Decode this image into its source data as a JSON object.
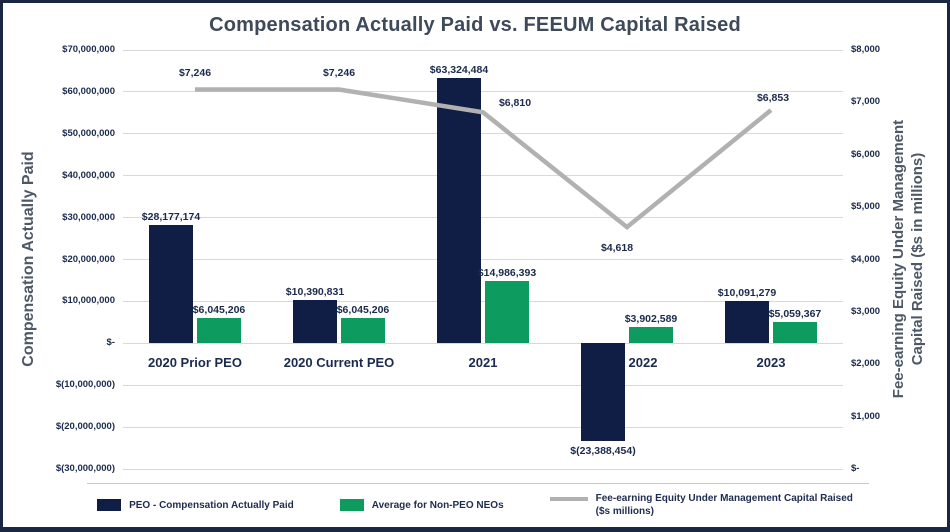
{
  "page": {
    "title": "Compensation Actually Paid vs. FEEUM Capital Raised"
  },
  "axes": {
    "left_title": "Compensation Actually Paid",
    "right_title_line1": "Fee-earning Equity Under Management",
    "right_title_line2": "Capital Raised ($s in millions)"
  },
  "chart_data": {
    "type": "bar+line",
    "title": "Compensation Actually Paid vs. FEEUM Capital Raised",
    "categories": [
      "2020 Prior PEO",
      "2020 Current PEO",
      "2021",
      "2022",
      "2023"
    ],
    "grid": true,
    "legend_position": "bottom",
    "left_axis": {
      "label": "Compensation Actually Paid",
      "min": -30000000,
      "max": 70000000,
      "tick_step": 10000000,
      "tick_labels": [
        "$70,000,000",
        "$60,000,000",
        "$50,000,000",
        "$40,000,000",
        "$30,000,000",
        "$20,000,000",
        "$10,000,000",
        "$-",
        "$(10,000,000)",
        "$(20,000,000)",
        "$(30,000,000)"
      ]
    },
    "right_axis": {
      "label": "Fee-earning Equity Under Management Capital Raised ($s in millions)",
      "min": 0,
      "max": 8000,
      "tick_step": 1000,
      "tick_labels": [
        "$8,000",
        "$7,000",
        "$6,000",
        "$5,000",
        "$4,000",
        "$3,000",
        "$2,000",
        "$1,000",
        "$-"
      ]
    },
    "series": [
      {
        "name": "PEO - Compensation Actually Paid",
        "type": "bar",
        "axis": "left",
        "color": "#101e45",
        "values": [
          28177174,
          10390831,
          63324484,
          -23388454,
          10091279
        ],
        "labels": [
          "$28,177,174",
          "$10,390,831",
          "$63,324,484",
          "$(23,388,454)",
          "$10,091,279"
        ]
      },
      {
        "name": "Average for Non-PEO NEOs",
        "type": "bar",
        "axis": "left",
        "color": "#0e9b5f",
        "values": [
          6045206,
          6045206,
          14986393,
          3902589,
          5059367
        ],
        "labels": [
          "$6,045,206",
          "$6,045,206",
          "$14,986,393",
          "$3,902,589",
          "$5,059,367"
        ]
      },
      {
        "name": "Fee-earning Equity Under Management Capital Raised ($s millions)",
        "type": "line",
        "axis": "right",
        "color": "#b1b1b1",
        "values": [
          7246,
          7246,
          6810,
          4618,
          6853
        ],
        "labels": [
          "$7,246",
          "$7,246",
          "$6,810",
          "$4,618",
          "$6,853"
        ]
      }
    ]
  },
  "legend": {
    "items": [
      {
        "label": "PEO - Compensation Actually Paid",
        "color": "#101e45",
        "marker": "square"
      },
      {
        "label": "Average for Non-PEO NEOs",
        "color": "#0e9b5f",
        "marker": "square"
      },
      {
        "label": "Fee-earning Equity Under Management Capital Raised",
        "label2": "($s millions)",
        "color": "#b1b1b1",
        "marker": "line"
      }
    ]
  },
  "colors": {
    "peo_bar": "#101e45",
    "non_peo_bar": "#0e9b5f",
    "feeum_line": "#b1b1b1",
    "gridline": "#d9d9d9",
    "text_dark": "#1b2a4d",
    "frame_border": "#1a2742"
  }
}
